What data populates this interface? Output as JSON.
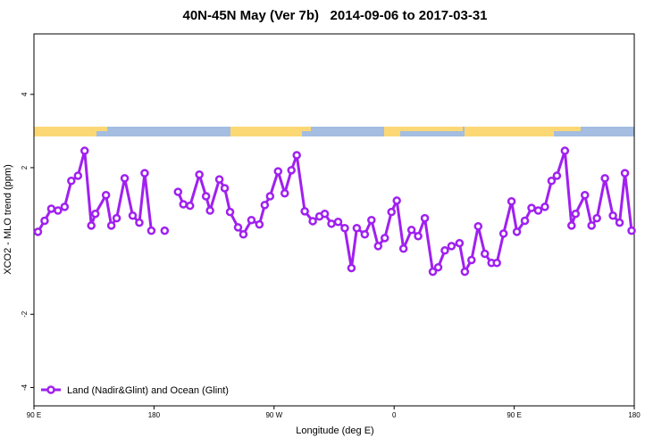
{
  "chart_data": {
    "type": "line",
    "title": "40N-45N May (Ver 7b)   2014-09-06 to 2017-03-31",
    "xlabel": "Longitude (deg E)",
    "ylabel": "XCO2 - MLO trend (ppm)",
    "xlim": [
      90,
      540
    ],
    "ylim": [
      -4.5,
      5.65
    ],
    "xticks": [
      {
        "value": 90,
        "label": "90 E"
      },
      180,
      {
        "value": 270,
        "label": "90 W"
      },
      {
        "value": 360,
        "label": "0"
      },
      {
        "value": 450,
        "label": "90 E"
      },
      {
        "value": 540,
        "label": "180"
      }
    ],
    "yticks": [
      -4,
      -2,
      2,
      4
    ],
    "legend": "bottom-left",
    "x": [
      93,
      98,
      103,
      108,
      113,
      118,
      123,
      128,
      133,
      136,
      144,
      148,
      152,
      158,
      164,
      169,
      173,
      178,
      183,
      188,
      193,
      198,
      202,
      207,
      214,
      219,
      222,
      229,
      233,
      237,
      243,
      247,
      253,
      259,
      263,
      267,
      273,
      278,
      283,
      287,
      293,
      299,
      304,
      308,
      313,
      318,
      323,
      328,
      332,
      338,
      343,
      348,
      353,
      358,
      362,
      367,
      373,
      378,
      383,
      389,
      393,
      398,
      403,
      409,
      413,
      418,
      423,
      428,
      433,
      437,
      442,
      448,
      452,
      458,
      463,
      468,
      473,
      478,
      482,
      488,
      493,
      496,
      503,
      508,
      512,
      518,
      524,
      529,
      533,
      538
    ],
    "series": [
      {
        "name": "Land (Nadir&Glint) and Ocean (Glint)",
        "color": "#a020f0",
        "values": [
          0.25,
          0.55,
          0.88,
          0.83,
          0.93,
          1.64,
          1.78,
          2.46,
          0.42,
          0.74,
          1.25,
          0.42,
          0.62,
          1.71,
          0.69,
          0.5,
          1.85,
          0.28,
          null,
          0.28,
          null,
          1.34,
          1.0,
          0.96,
          1.81,
          1.22,
          0.83,
          1.68,
          1.44,
          0.79,
          0.37,
          0.18,
          0.57,
          0.45,
          0.98,
          1.22,
          1.9,
          1.3,
          1.93,
          2.34,
          0.81,
          0.54,
          0.67,
          0.74,
          0.47,
          0.52,
          0.35,
          -0.74,
          0.35,
          0.18,
          0.57,
          -0.14,
          0.08,
          0.79,
          1.1,
          -0.21,
          0.3,
          0.13,
          0.62,
          -0.84,
          -0.72,
          -0.26,
          -0.14,
          -0.06,
          -0.84,
          -0.52,
          0.4,
          -0.35,
          -0.6,
          -0.6,
          0.2,
          1.08,
          0.25,
          0.55,
          0.9,
          0.83,
          0.93,
          1.64,
          1.78,
          2.46,
          0.42,
          0.74,
          1.25,
          0.42,
          0.62,
          1.71,
          0.69,
          0.5,
          1.85,
          0.28
        ]
      }
    ]
  }
}
